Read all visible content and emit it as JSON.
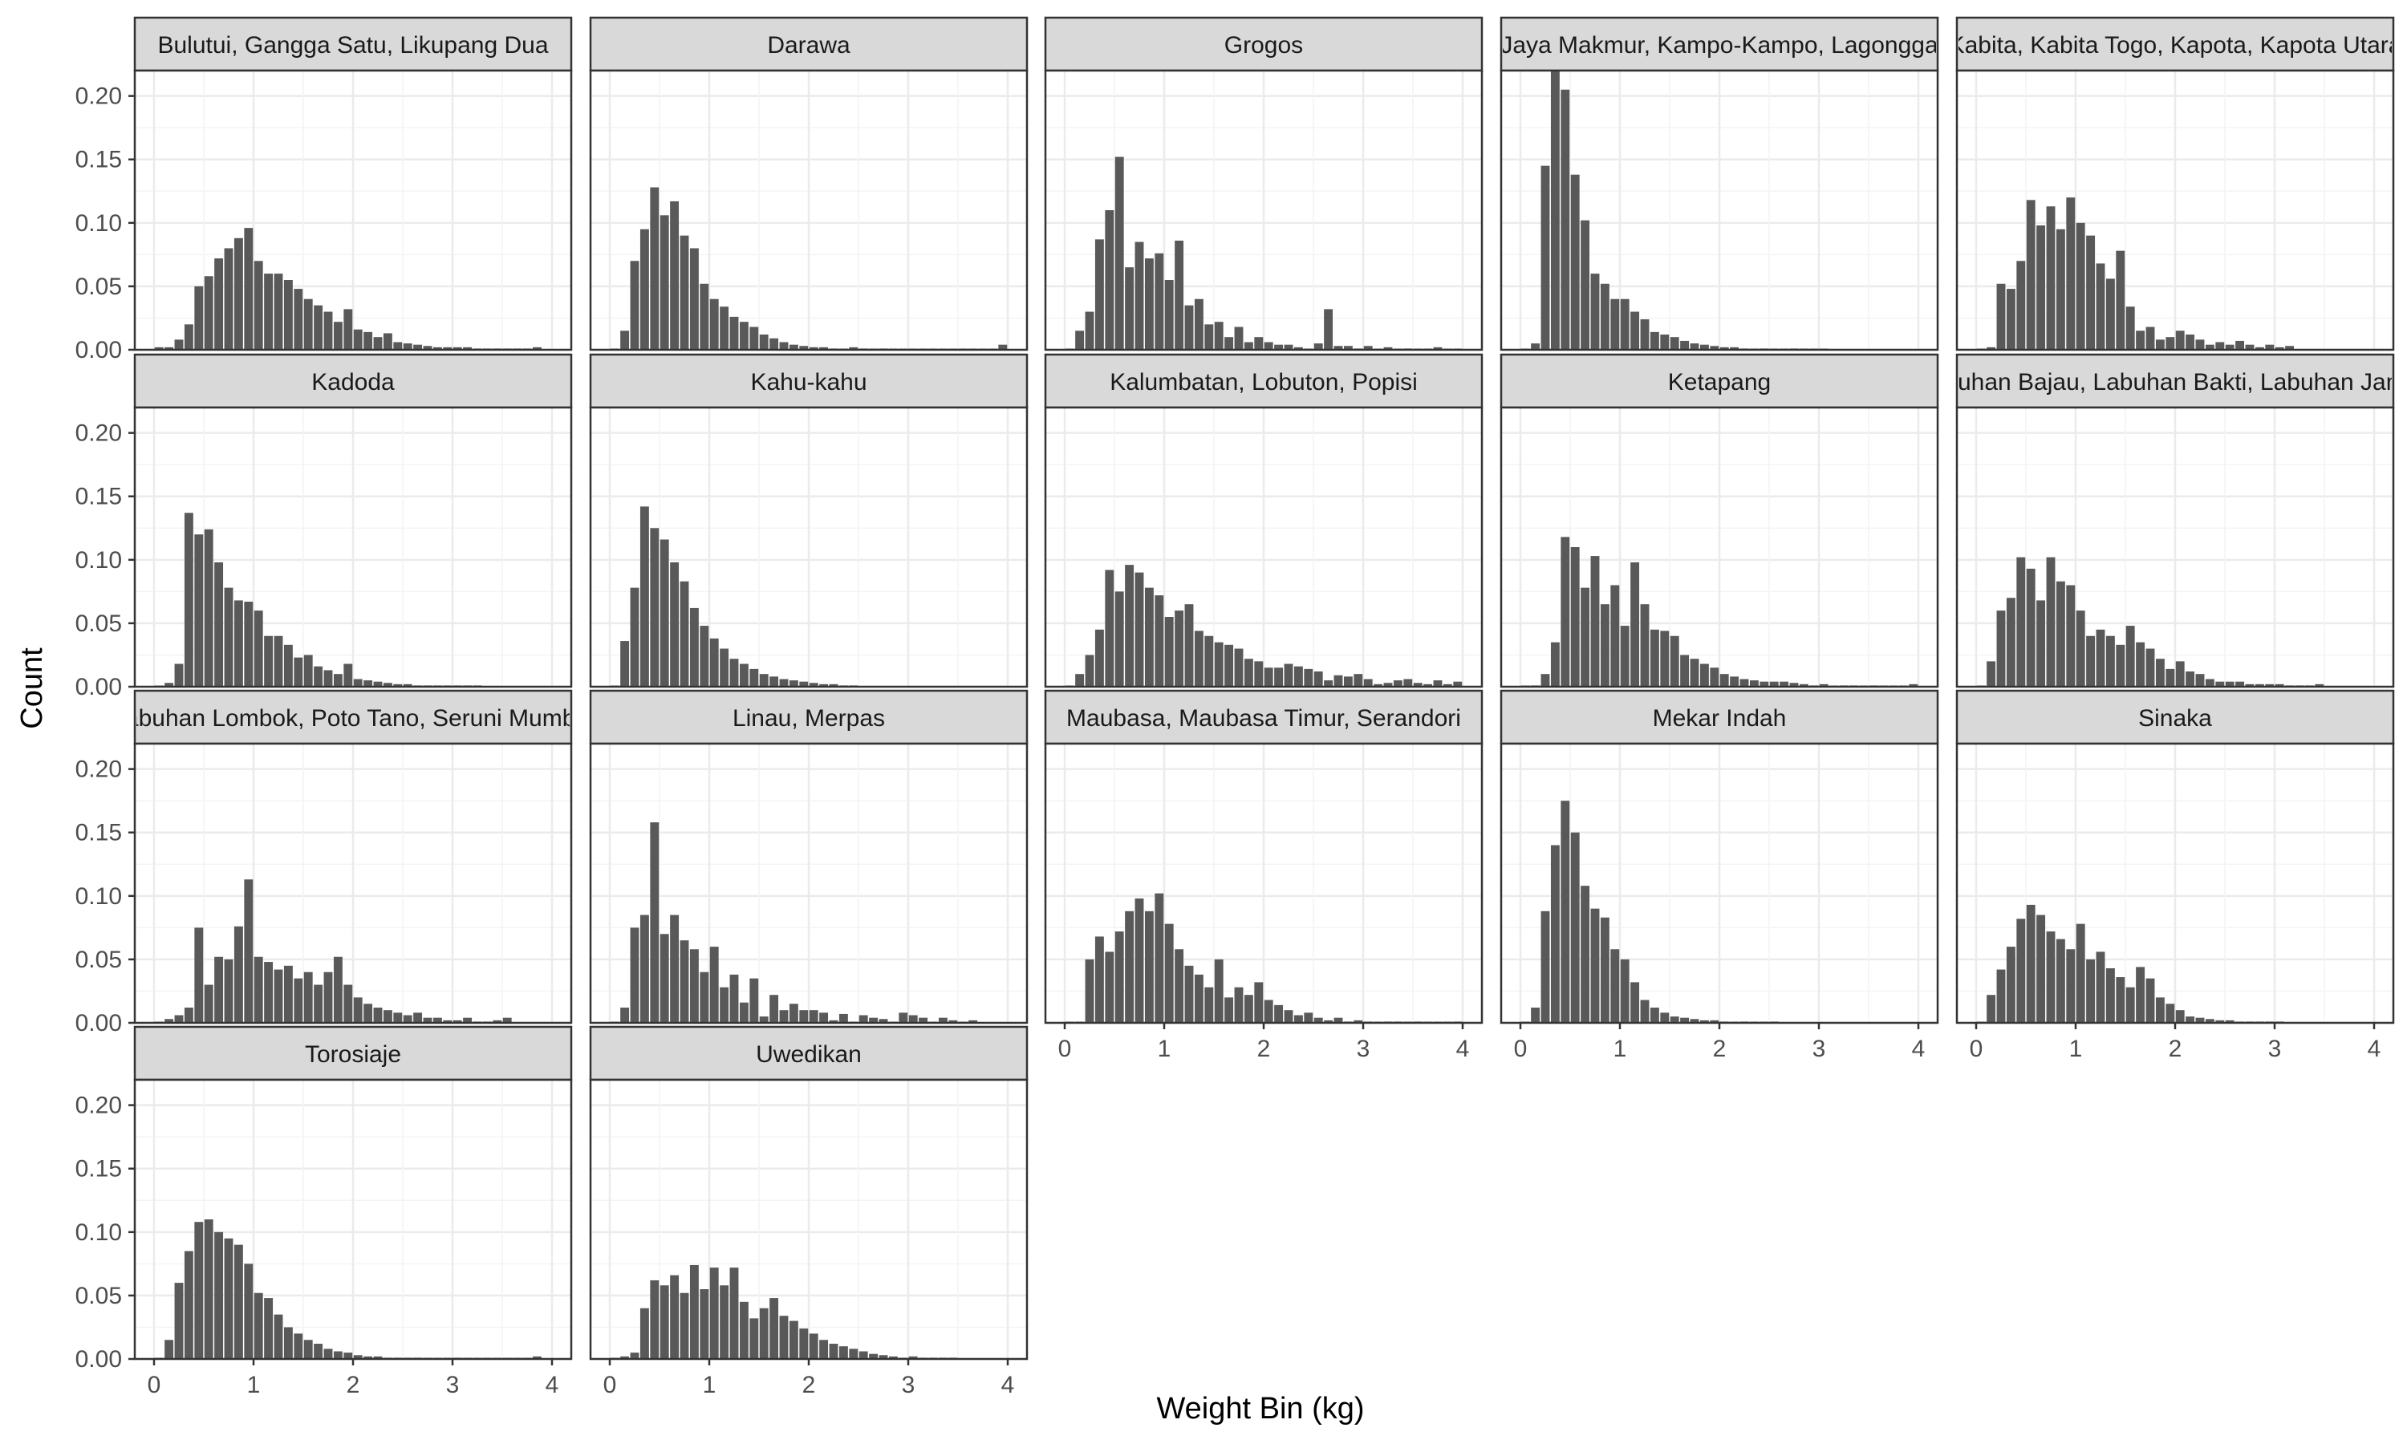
{
  "chart_data": {
    "type": "bar",
    "layout": "faceted-histogram",
    "xlabel": "Weight Bin (kg)",
    "ylabel": "Count",
    "xlim": [
      0,
      4
    ],
    "ylim": [
      0,
      0.22
    ],
    "x_ticks": [
      0,
      1,
      2,
      3,
      4
    ],
    "y_ticks": [
      0.0,
      0.05,
      0.1,
      0.15,
      0.2
    ],
    "y_tick_labels": [
      "0.00",
      "0.05",
      "0.10",
      "0.15",
      "0.20"
    ],
    "bin_width_kg": 0.1,
    "grid": true,
    "colors": {
      "bar": "#595959",
      "strip_fill": "#d9d9d9",
      "panel_border": "#333333",
      "grid": "#ebebeb"
    },
    "facets": [
      {
        "label": "Bulutui, Gangga Satu, Likupang Dua",
        "values": [
          0.002,
          0.002,
          0.008,
          0.02,
          0.05,
          0.058,
          0.072,
          0.08,
          0.088,
          0.096,
          0.07,
          0.06,
          0.06,
          0.055,
          0.048,
          0.04,
          0.035,
          0.03,
          0.022,
          0.032,
          0.016,
          0.014,
          0.01,
          0.013,
          0.006,
          0.005,
          0.004,
          0.003,
          0.002,
          0.002,
          0.002,
          0.002,
          0.001,
          0.001,
          0.001,
          0.001,
          0.001,
          0.001,
          0.002
        ]
      },
      {
        "label": "Darawa",
        "values": [
          0.0,
          0.015,
          0.07,
          0.095,
          0.128,
          0.106,
          0.117,
          0.09,
          0.08,
          0.052,
          0.04,
          0.034,
          0.026,
          0.022,
          0.018,
          0.012,
          0.009,
          0.006,
          0.004,
          0.003,
          0.002,
          0.002,
          0.001,
          0.0,
          0.002,
          0.001,
          0.0,
          0.001,
          0.0,
          0.0,
          0.0,
          0.0,
          0.0,
          0.0,
          0.0,
          0.0,
          0.0,
          0.0,
          0.0,
          0.004
        ]
      },
      {
        "label": "Grogos",
        "values": [
          0.0,
          0.015,
          0.03,
          0.087,
          0.11,
          0.152,
          0.065,
          0.085,
          0.072,
          0.076,
          0.055,
          0.086,
          0.035,
          0.04,
          0.02,
          0.022,
          0.01,
          0.018,
          0.006,
          0.01,
          0.006,
          0.004,
          0.004,
          0.002,
          0.0,
          0.005,
          0.032,
          0.003,
          0.003,
          0.001,
          0.003,
          0.0,
          0.002,
          0.0,
          0.001,
          0.0,
          0.0,
          0.002,
          0.0,
          0.0
        ]
      },
      {
        "label": "Jaya Makmur, Kampo-Kampo, Lagongga",
        "values": [
          0.0,
          0.005,
          0.145,
          0.22,
          0.205,
          0.138,
          0.102,
          0.06,
          0.052,
          0.04,
          0.04,
          0.03,
          0.024,
          0.014,
          0.012,
          0.01,
          0.007,
          0.005,
          0.004,
          0.003,
          0.002,
          0.002,
          0.001,
          0.0,
          0.001,
          0.0,
          0.0,
          0.001,
          0.0,
          0.0,
          0.0
        ]
      },
      {
        "label": "Kabita, Kabita Togo, Kapota, Kapota Utara",
        "values": [
          0.0,
          0.002,
          0.052,
          0.048,
          0.07,
          0.118,
          0.098,
          0.113,
          0.095,
          0.12,
          0.1,
          0.09,
          0.068,
          0.056,
          0.078,
          0.034,
          0.015,
          0.018,
          0.008,
          0.01,
          0.015,
          0.012,
          0.008,
          0.004,
          0.006,
          0.004,
          0.007,
          0.004,
          0.002,
          0.004,
          0.002,
          0.003
        ]
      },
      {
        "label": "Kadoda",
        "values": [
          0.0,
          0.003,
          0.018,
          0.137,
          0.12,
          0.124,
          0.098,
          0.078,
          0.068,
          0.067,
          0.06,
          0.04,
          0.04,
          0.033,
          0.023,
          0.025,
          0.016,
          0.013,
          0.01,
          0.018,
          0.006,
          0.005,
          0.004,
          0.003,
          0.002,
          0.002,
          0.001,
          0.001,
          0.001,
          0.001,
          0.001,
          0.001,
          0.001
        ]
      },
      {
        "label": "Kahu-kahu",
        "values": [
          0.0,
          0.036,
          0.078,
          0.142,
          0.125,
          0.116,
          0.098,
          0.083,
          0.062,
          0.048,
          0.038,
          0.03,
          0.022,
          0.018,
          0.014,
          0.01,
          0.008,
          0.006,
          0.005,
          0.004,
          0.003,
          0.002,
          0.002,
          0.001,
          0.001
        ]
      },
      {
        "label": "Kalumbatan, Lobuton, Popisi",
        "values": [
          0.0,
          0.01,
          0.025,
          0.045,
          0.092,
          0.075,
          0.096,
          0.09,
          0.078,
          0.072,
          0.055,
          0.06,
          0.065,
          0.044,
          0.04,
          0.035,
          0.033,
          0.03,
          0.022,
          0.02,
          0.015,
          0.015,
          0.018,
          0.016,
          0.014,
          0.012,
          0.005,
          0.009,
          0.008,
          0.01,
          0.006,
          0.002,
          0.003,
          0.005,
          0.006,
          0.003,
          0.002,
          0.005,
          0.002,
          0.004
        ]
      },
      {
        "label": "Ketapang",
        "values": [
          0.0,
          0.001,
          0.01,
          0.035,
          0.118,
          0.11,
          0.078,
          0.103,
          0.065,
          0.08,
          0.048,
          0.098,
          0.065,
          0.045,
          0.044,
          0.04,
          0.025,
          0.022,
          0.018,
          0.015,
          0.01,
          0.008,
          0.006,
          0.005,
          0.004,
          0.004,
          0.004,
          0.003,
          0.002,
          0.001,
          0.002,
          0.0,
          0.001,
          0.001,
          0.0,
          0.001,
          0.0,
          0.0,
          0.0,
          0.002
        ]
      },
      {
        "label": "Labuhan Bajau, Labuhan Bakti, Labuhan Jambu",
        "values": [
          0.0,
          0.02,
          0.06,
          0.07,
          0.102,
          0.093,
          0.068,
          0.102,
          0.083,
          0.08,
          0.06,
          0.04,
          0.045,
          0.04,
          0.033,
          0.048,
          0.035,
          0.03,
          0.022,
          0.014,
          0.02,
          0.012,
          0.01,
          0.006,
          0.004,
          0.004,
          0.004,
          0.002,
          0.002,
          0.002,
          0.002,
          0.001,
          0.001,
          0.001,
          0.002
        ]
      },
      {
        "label": "Labuhan Lombok, Poto Tano, Seruni Mumbul",
        "values": [
          0.0,
          0.003,
          0.006,
          0.012,
          0.075,
          0.03,
          0.052,
          0.05,
          0.076,
          0.113,
          0.052,
          0.048,
          0.042,
          0.045,
          0.035,
          0.04,
          0.03,
          0.04,
          0.052,
          0.03,
          0.02,
          0.015,
          0.012,
          0.01,
          0.008,
          0.006,
          0.008,
          0.004,
          0.004,
          0.002,
          0.002,
          0.004,
          0.001,
          0.001,
          0.002,
          0.004
        ]
      },
      {
        "label": "Linau, Merpas",
        "values": [
          0.0,
          0.012,
          0.075,
          0.085,
          0.158,
          0.07,
          0.085,
          0.065,
          0.058,
          0.04,
          0.06,
          0.028,
          0.038,
          0.016,
          0.035,
          0.005,
          0.022,
          0.01,
          0.015,
          0.01,
          0.01,
          0.008,
          0.002,
          0.007,
          0.0,
          0.006,
          0.004,
          0.003,
          0.0,
          0.008,
          0.006,
          0.004,
          0.0,
          0.004,
          0.002,
          0.0,
          0.002
        ]
      },
      {
        "label": "Maubasa, Maubasa Timur, Serandori",
        "values": [
          0.0,
          0.0,
          0.05,
          0.068,
          0.056,
          0.072,
          0.088,
          0.098,
          0.088,
          0.102,
          0.078,
          0.058,
          0.045,
          0.038,
          0.028,
          0.05,
          0.02,
          0.028,
          0.022,
          0.032,
          0.018,
          0.014,
          0.01,
          0.006,
          0.008,
          0.004,
          0.002,
          0.004,
          0.001,
          0.002,
          0.001,
          0.0,
          0.001,
          0.001,
          0.0,
          0.001,
          0.0,
          0.0,
          0.0,
          0.001
        ]
      },
      {
        "label": "Mekar Indah",
        "values": [
          0.0,
          0.012,
          0.088,
          0.14,
          0.175,
          0.15,
          0.108,
          0.09,
          0.083,
          0.058,
          0.05,
          0.032,
          0.018,
          0.012,
          0.008,
          0.005,
          0.004,
          0.003,
          0.002,
          0.002,
          0.001,
          0.0,
          0.001,
          0.0,
          0.0,
          0.001
        ]
      },
      {
        "label": "Sinaka",
        "values": [
          0.0,
          0.022,
          0.042,
          0.06,
          0.082,
          0.093,
          0.085,
          0.072,
          0.066,
          0.058,
          0.078,
          0.05,
          0.056,
          0.043,
          0.036,
          0.028,
          0.044,
          0.035,
          0.02,
          0.015,
          0.01,
          0.005,
          0.004,
          0.003,
          0.002,
          0.002,
          0.001,
          0.001,
          0.001,
          0.001,
          0.001
        ]
      },
      {
        "label": "Torosiaje",
        "values": [
          0.0,
          0.015,
          0.06,
          0.085,
          0.108,
          0.11,
          0.1,
          0.095,
          0.09,
          0.075,
          0.052,
          0.048,
          0.035,
          0.025,
          0.02,
          0.015,
          0.012,
          0.008,
          0.006,
          0.005,
          0.003,
          0.002,
          0.002,
          0.001,
          0.001,
          0.001,
          0.001,
          0.0,
          0.0,
          0.0,
          0.001,
          0.0,
          0.0,
          0.0,
          0.0,
          0.0,
          0.0,
          0.0,
          0.002
        ]
      },
      {
        "label": "Uwedikan",
        "values": [
          0.0,
          0.002,
          0.005,
          0.04,
          0.062,
          0.058,
          0.066,
          0.052,
          0.074,
          0.055,
          0.072,
          0.058,
          0.072,
          0.045,
          0.032,
          0.04,
          0.048,
          0.034,
          0.03,
          0.024,
          0.02,
          0.015,
          0.012,
          0.01,
          0.008,
          0.006,
          0.004,
          0.003,
          0.002,
          0.001,
          0.002,
          0.001,
          0.001,
          0.001,
          0.001
        ]
      }
    ]
  }
}
